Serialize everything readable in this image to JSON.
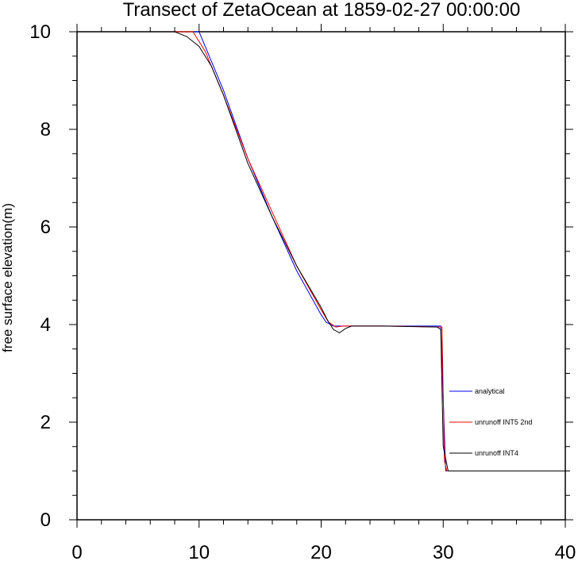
{
  "chart_data": {
    "type": "line",
    "title": "Transect of ZetaOcean at 1859-02-27 00:00:00",
    "xlabel": "",
    "ylabel": "free surface elevation(m)",
    "xlim": [
      0,
      40
    ],
    "ylim": [
      0,
      10
    ],
    "xticks": [
      "0",
      "10",
      "20",
      "30",
      "40"
    ],
    "yticks": [
      "0",
      "2",
      "4",
      "6",
      "8",
      "10"
    ],
    "grid": false,
    "legend_position": "right",
    "series": [
      {
        "name": "analytical",
        "color": "#0000ff",
        "points": [
          [
            0,
            10
          ],
          [
            10,
            10
          ],
          [
            12,
            8.8
          ],
          [
            14,
            7.4
          ],
          [
            16,
            6.2
          ],
          [
            18,
            5.1
          ],
          [
            20,
            4.2
          ],
          [
            20.4,
            4.05
          ],
          [
            21,
            3.97
          ],
          [
            25,
            3.97
          ],
          [
            29.8,
            3.97
          ],
          [
            30.2,
            1.0
          ],
          [
            40,
            1.0
          ]
        ]
      },
      {
        "name": "unrunoff INT5 2nd",
        "color": "#ff0000",
        "points": [
          [
            0,
            10
          ],
          [
            9.5,
            10
          ],
          [
            10.5,
            9.6
          ],
          [
            12,
            8.7
          ],
          [
            14,
            7.4
          ],
          [
            16,
            6.3
          ],
          [
            18,
            5.2
          ],
          [
            20,
            4.3
          ],
          [
            20.6,
            4.05
          ],
          [
            21.2,
            3.95
          ],
          [
            21.8,
            3.97
          ],
          [
            25,
            3.97
          ],
          [
            29.9,
            3.95
          ],
          [
            30.1,
            1.2
          ],
          [
            30.3,
            1.0
          ],
          [
            40,
            1.0
          ]
        ]
      },
      {
        "name": "unrunoff INT4",
        "color": "#000000",
        "points": [
          [
            0,
            10
          ],
          [
            8,
            10
          ],
          [
            9,
            9.9
          ],
          [
            10,
            9.7
          ],
          [
            11,
            9.3
          ],
          [
            12,
            8.7
          ],
          [
            14,
            7.3
          ],
          [
            16,
            6.2
          ],
          [
            18,
            5.2
          ],
          [
            20,
            4.35
          ],
          [
            20.5,
            4.1
          ],
          [
            21,
            3.9
          ],
          [
            21.5,
            3.83
          ],
          [
            22,
            3.92
          ],
          [
            22.5,
            3.97
          ],
          [
            25,
            3.97
          ],
          [
            29.5,
            3.95
          ],
          [
            29.8,
            3.9
          ],
          [
            30,
            1.5
          ],
          [
            30.4,
            1.0
          ],
          [
            40,
            1.0
          ]
        ]
      }
    ]
  }
}
